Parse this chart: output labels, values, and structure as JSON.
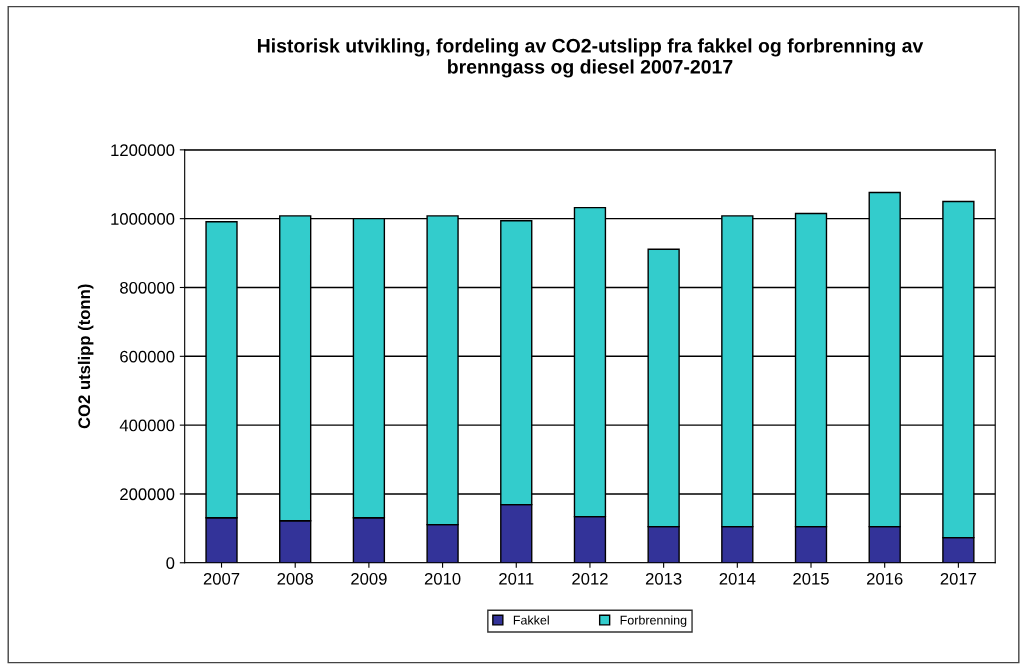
{
  "chart_data": {
    "type": "bar",
    "stacked": true,
    "title": "Historisk utvikling, fordeling av CO2-utslipp fra fakkel og forbrenning av\nbrenngass og diesel 2007-2017",
    "ylabel": "CO2 utslipp (tonn)",
    "categories": [
      "2007",
      "2008",
      "2009",
      "2010",
      "2011",
      "2012",
      "2013",
      "2014",
      "2015",
      "2016",
      "2017"
    ],
    "series": [
      {
        "name": "Fakkel",
        "color": "#333399",
        "values": [
          131000,
          122000,
          131000,
          111000,
          169000,
          134000,
          105000,
          105000,
          105000,
          105000,
          73000
        ]
      },
      {
        "name": "Forbrenning",
        "color": "#33cccc",
        "values": [
          860000,
          886000,
          869000,
          897000,
          825000,
          898000,
          806000,
          903000,
          910000,
          971000,
          977000
        ]
      }
    ],
    "ylim": [
      0,
      1200000
    ],
    "yticks": [
      0,
      200000,
      400000,
      600000,
      800000,
      1000000,
      1200000
    ],
    "grid": "y",
    "legend": "bottom"
  }
}
